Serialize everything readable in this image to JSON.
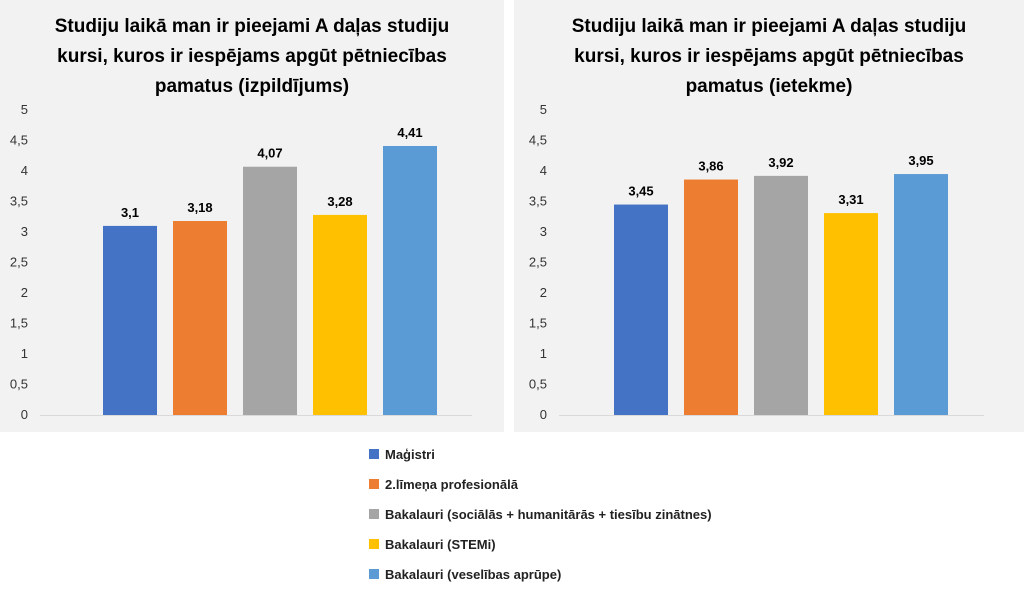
{
  "chart_data": [
    {
      "type": "bar",
      "title_lines": [
        "Studiju laikā man ir pieejami A daļas studiju",
        "kursi, kuros ir iespējams apgūt pētniecības",
        "pamatus (izpildījums)"
      ],
      "categories": [
        "Maģistri",
        "2.līmeņa profesionālā",
        "Bakalauri (sociālās + humanitārās + tiesību zinātnes)",
        "Bakalauri (STEMi)",
        "Bakalauri (veselības aprūpe)"
      ],
      "values": [
        3.1,
        3.18,
        4.07,
        3.28,
        4.41
      ],
      "value_labels": [
        "3,1",
        "3,18",
        "4,07",
        "3,28",
        "4,41"
      ],
      "ylim": [
        0,
        5
      ],
      "yticks": [
        "0",
        "0,5",
        "1",
        "1,5",
        "2",
        "2,5",
        "3",
        "3,5",
        "4",
        "4,5",
        "5"
      ],
      "xlabel": "",
      "ylabel": "",
      "grid": false
    },
    {
      "type": "bar",
      "title_lines": [
        "Studiju laikā man ir pieejami A daļas studiju",
        "kursi, kuros ir iespējams apgūt pētniecības",
        "pamatus (ietekme)"
      ],
      "categories": [
        "Maģistri",
        "2.līmeņa profesionālā",
        "Bakalauri (sociālās + humanitārās + tiesību zinātnes)",
        "Bakalauri (STEMi)",
        "Bakalauri (veselības aprūpe)"
      ],
      "values": [
        3.45,
        3.86,
        3.92,
        3.31,
        3.95
      ],
      "value_labels": [
        "3,45",
        "3,86",
        "3,92",
        "3,31",
        "3,95"
      ],
      "ylim": [
        0,
        5
      ],
      "yticks": [
        "0",
        "0,5",
        "1",
        "1,5",
        "2",
        "2,5",
        "3",
        "3,5",
        "4",
        "4,5",
        "5"
      ],
      "xlabel": "",
      "ylabel": "",
      "grid": false
    }
  ],
  "legend": {
    "items": [
      {
        "label": "Maģistri",
        "color": "#4472C4"
      },
      {
        "label": "2.līmeņa profesionālā",
        "color": "#ED7D31"
      },
      {
        "label": "Bakalauri (sociālās + humanitārās + tiesību zinātnes)",
        "color": "#A5A5A5"
      },
      {
        "label": "Bakalauri (STEMi)",
        "color": "#FFC000"
      },
      {
        "label": "Bakalauri (veselības aprūpe)",
        "color": "#5B9BD5"
      }
    ]
  }
}
